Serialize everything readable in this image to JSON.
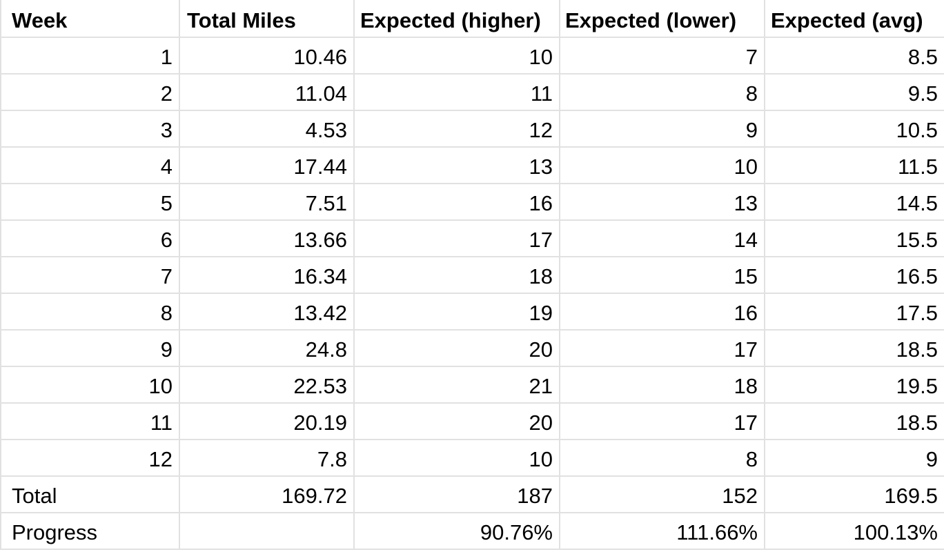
{
  "sheet": {
    "headers": [
      "Week",
      "Total Miles",
      "Expected (higher)",
      "Expected (lower)",
      "Expected (avg)"
    ],
    "rows": [
      [
        "1",
        "10.46",
        "10",
        "7",
        "8.5"
      ],
      [
        "2",
        "11.04",
        "11",
        "8",
        "9.5"
      ],
      [
        "3",
        "4.53",
        "12",
        "9",
        "10.5"
      ],
      [
        "4",
        "17.44",
        "13",
        "10",
        "11.5"
      ],
      [
        "5",
        "7.51",
        "16",
        "13",
        "14.5"
      ],
      [
        "6",
        "13.66",
        "17",
        "14",
        "15.5"
      ],
      [
        "7",
        "16.34",
        "18",
        "15",
        "16.5"
      ],
      [
        "8",
        "13.42",
        "19",
        "16",
        "17.5"
      ],
      [
        "9",
        "24.8",
        "20",
        "17",
        "18.5"
      ],
      [
        "10",
        "22.53",
        "21",
        "18",
        "19.5"
      ],
      [
        "11",
        "20.19",
        "20",
        "17",
        "18.5"
      ],
      [
        "12",
        "7.8",
        "10",
        "8",
        "9"
      ]
    ],
    "total_row": [
      "Total",
      "169.72",
      "187",
      "152",
      "169.5"
    ],
    "progress_row": [
      "Progress",
      "",
      "90.76%",
      "111.66%",
      "100.13%"
    ]
  }
}
